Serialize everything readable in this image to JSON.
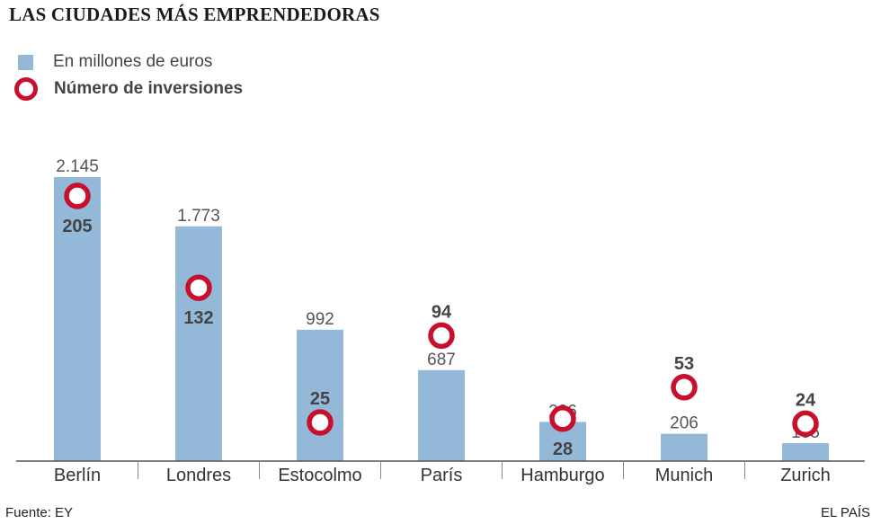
{
  "title": "LAS CIUDADES MÁS EMPRENDEDORAS",
  "legend": {
    "amount_label": "En millones de euros",
    "count_label": "Número de inversiones"
  },
  "colors": {
    "bar": "#93b8d8",
    "ring": "#c8102e",
    "axis": "#555555"
  },
  "source": "Fuente: EY",
  "brand": "EL PAÍS",
  "chart_data": {
    "type": "bar",
    "categories": [
      "Berlín",
      "Londres",
      "Estocolmo",
      "París",
      "Hamburgo",
      "Munich",
      "Zurich"
    ],
    "series": [
      {
        "name": "En millones de euros",
        "values": [
          2145,
          1773,
          992,
          687,
          296,
          206,
          135
        ],
        "value_labels": [
          "2.145",
          "1.773",
          "992",
          "687",
          "296",
          "206",
          "135"
        ]
      },
      {
        "name": "Número de inversiones",
        "values": [
          205,
          132,
          25,
          94,
          28,
          53,
          24
        ]
      }
    ],
    "ylim": [
      0,
      2145
    ],
    "grid": false
  }
}
